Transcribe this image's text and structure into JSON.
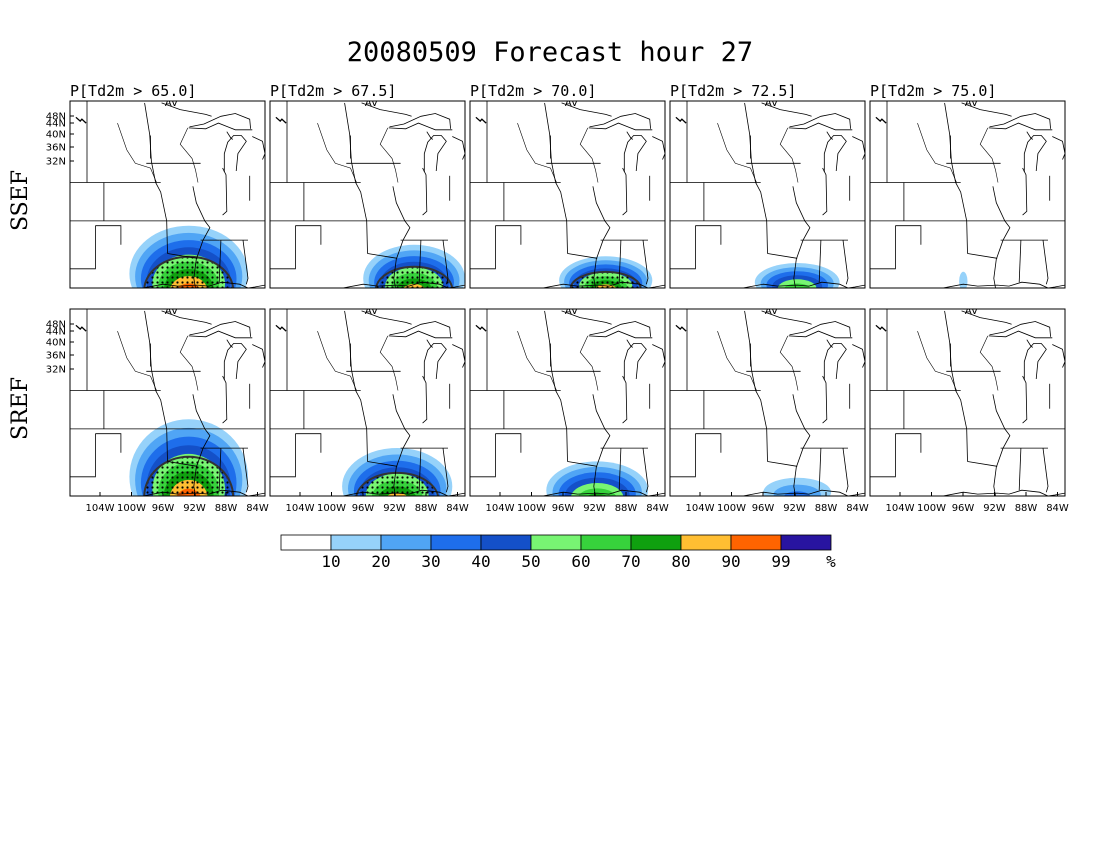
{
  "figure": {
    "title": "20080509 Forecast hour 27",
    "row_labels": [
      "SSEF",
      "SREF"
    ],
    "panel_titles": [
      "P[Td2m > 65.0]",
      "P[Td2m > 67.5]",
      "P[Td2m > 70.0]",
      "P[Td2m > 72.5]",
      "P[Td2m > 75.0]"
    ],
    "lat_ticks": [
      "48N",
      "44N",
      "40N",
      "36N",
      "32N"
    ],
    "lon_ticks": [
      "104W",
      "100W",
      "96W",
      "92W",
      "88W",
      "84W"
    ],
    "map_corner_mark": "AV"
  },
  "colorbar": {
    "labels": [
      "10",
      "20",
      "30",
      "40",
      "50",
      "60",
      "70",
      "80",
      "90",
      "99",
      "%"
    ],
    "colors": [
      "#ffffff",
      "#96d2fa",
      "#50a5f5",
      "#1e6eeb",
      "#1450c8",
      "#78f573",
      "#37d23c",
      "#0fa00f",
      "#ffbe32",
      "#ff6400",
      "#2814a0"
    ]
  },
  "chart_data": {
    "type": "heatmap",
    "variable": "P[Td2m > threshold] (%)",
    "thresholds": [
      65.0,
      67.5,
      70.0,
      72.5,
      75.0
    ],
    "levels": [
      10,
      20,
      30,
      40,
      50,
      60,
      70,
      80,
      90,
      99
    ],
    "units": "%",
    "region": {
      "lon_range": [
        -106,
        -83
      ],
      "lat_range": [
        30,
        49.5
      ]
    },
    "rows": [
      {
        "name": "SSEF",
        "panels": [
          {
            "threshold": 65.0,
            "max_prob": 99,
            "center": [
              -92,
              31.5
            ],
            "extent": [
              14,
              5
            ]
          },
          {
            "threshold": 67.5,
            "max_prob": 95,
            "center": [
              -89,
              31.0
            ],
            "extent": [
              12,
              3.5
            ]
          },
          {
            "threshold": 70.0,
            "max_prob": 90,
            "center": [
              -90,
              30.8
            ],
            "extent": [
              11,
              2.5
            ]
          },
          {
            "threshold": 72.5,
            "max_prob": 70,
            "center": [
              -91,
              30.6
            ],
            "extent": [
              10,
              2
            ]
          },
          {
            "threshold": 75.0,
            "max_prob": 15,
            "center": [
              -95,
              30.7
            ],
            "extent": [
              1,
              1
            ]
          }
        ]
      },
      {
        "name": "SREF",
        "panels": [
          {
            "threshold": 65.0,
            "max_prob": 99,
            "center": [
              -92,
              32.0
            ],
            "extent": [
              14,
              6
            ]
          },
          {
            "threshold": 67.5,
            "max_prob": 95,
            "center": [
              -91,
              31.0
            ],
            "extent": [
              13,
              4
            ]
          },
          {
            "threshold": 70.0,
            "max_prob": 85,
            "center": [
              -91,
              30.6
            ],
            "extent": [
              12,
              3
            ]
          },
          {
            "threshold": 72.5,
            "max_prob": 35,
            "center": [
              -91,
              30.4
            ],
            "extent": [
              8,
              1.5
            ]
          },
          {
            "threshold": 75.0,
            "max_prob": 0,
            "center": [
              -91,
              30.3
            ],
            "extent": [
              0,
              0
            ]
          }
        ]
      }
    ]
  }
}
